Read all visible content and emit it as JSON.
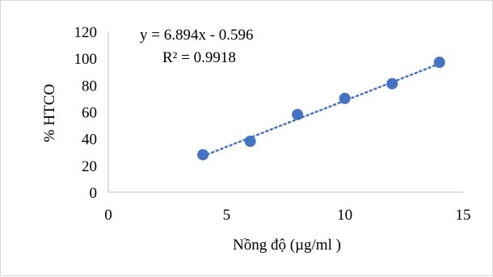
{
  "chart_data": {
    "type": "scatter",
    "title": "",
    "xlabel": "Nồng độ (µg/ml )",
    "ylabel": "% HTCO",
    "xlim": [
      0,
      15
    ],
    "ylim": [
      0,
      120
    ],
    "x_ticks": [
      "0",
      "5",
      "10",
      "15"
    ],
    "y_ticks": [
      "0",
      "20",
      "40",
      "60",
      "80",
      "100",
      "120"
    ],
    "grid": false,
    "legend": "none",
    "series": [
      {
        "x": [
          4,
          6,
          8,
          10,
          12,
          14
        ],
        "y": [
          28,
          38,
          58,
          70,
          81,
          97
        ],
        "color": "#4472c4"
      }
    ],
    "trendline": {
      "type": "linear",
      "slope": 6.894,
      "intercept": -0.596,
      "style": "dotted",
      "color": "#4472c4"
    },
    "annotations": {
      "equation": "y = 6.894x - 0.596",
      "r_squared": "R² = 0.9918"
    }
  }
}
